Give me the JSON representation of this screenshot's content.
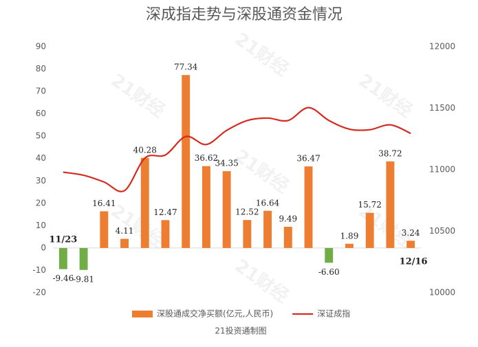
{
  "chart_data": {
    "type": "bar",
    "title": "深成指走势与深股通资金情况",
    "footer": "21投资通制图",
    "watermark": "21财经",
    "categories": [
      "11/23",
      null,
      null,
      null,
      null,
      null,
      null,
      null,
      null,
      null,
      null,
      null,
      null,
      null,
      null,
      null,
      null,
      "12/16"
    ],
    "series": [
      {
        "name": "深股通成交净买额(亿元,人民币)",
        "type": "bar",
        "color": "#ed7d31",
        "negative_color": "#70ad47",
        "values": [
          -9.46,
          -9.81,
          16.41,
          4.11,
          40.28,
          12.47,
          77.34,
          36.62,
          34.35,
          12.52,
          16.64,
          9.49,
          36.47,
          -6.6,
          1.89,
          15.72,
          38.72,
          3.24
        ],
        "value_labels": [
          "-9.46",
          "-9.81",
          "16.41",
          "4.11",
          "40.28",
          "12.47",
          "77.34",
          "36.62",
          "34.35",
          "12.52",
          "16.64",
          "9.49",
          "36.47",
          "-6.60",
          "1.89",
          "15.72",
          "38.72",
          "3.24"
        ]
      },
      {
        "name": "深证成指",
        "type": "line",
        "axis": "y2",
        "color": "#d42a20",
        "values": [
          10980,
          10955,
          10900,
          10830,
          11095,
          11120,
          11270,
          11205,
          11320,
          11400,
          11420,
          11400,
          11505,
          11400,
          11330,
          11325,
          11365,
          11295
        ]
      }
    ],
    "ylim": [
      -20,
      90
    ],
    "yticks": [
      -20,
      -10,
      0,
      10,
      20,
      30,
      40,
      50,
      60,
      70,
      80,
      90
    ],
    "y2lim": [
      10000,
      12000
    ],
    "y2ticks": [
      10000,
      10500,
      11000,
      11500,
      12000
    ],
    "legend": "bottom"
  }
}
